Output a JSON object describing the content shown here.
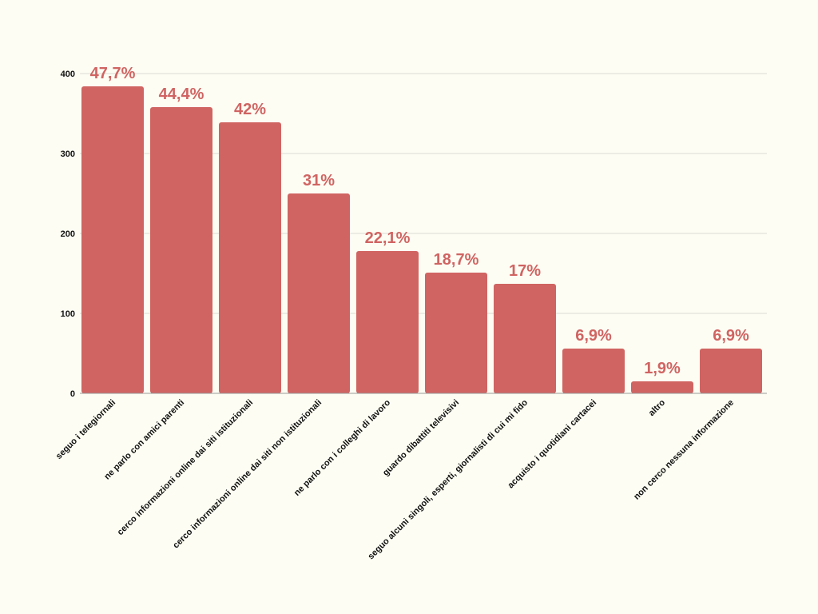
{
  "chart_data": {
    "type": "bar",
    "categories": [
      "seguo i telegiornali",
      "ne parlo con amici parenti",
      "cerco informazioni online dai siti istituzionali",
      "cerco informazioni online dai siti non istituzionali",
      "ne parlo con i colleghi di lavoro",
      "guardo dibattiti televisivi",
      "seguo alcuni singoli, esperti, giornalisti di cui mi fido",
      "acquisto i quotidiani cartacei",
      "altro",
      "non cerco nessuna informazione"
    ],
    "values": [
      384,
      358,
      339,
      250,
      178,
      151,
      137,
      56,
      15,
      56
    ],
    "data_labels": [
      "47,7%",
      "44,4%",
      "42%",
      "31%",
      "22,1%",
      "18,7%",
      "17%",
      "6,9%",
      "1,9%",
      "6,9%"
    ],
    "ylim": [
      0,
      400
    ],
    "yticks": [
      "0",
      "100",
      "200",
      "300",
      "400"
    ],
    "grid": true,
    "colors": {
      "bar": "#d06462",
      "label": "#d06462",
      "grid": "#dcdcd4",
      "axis": "#9a9a9a",
      "background": "#fdfdf3"
    }
  }
}
